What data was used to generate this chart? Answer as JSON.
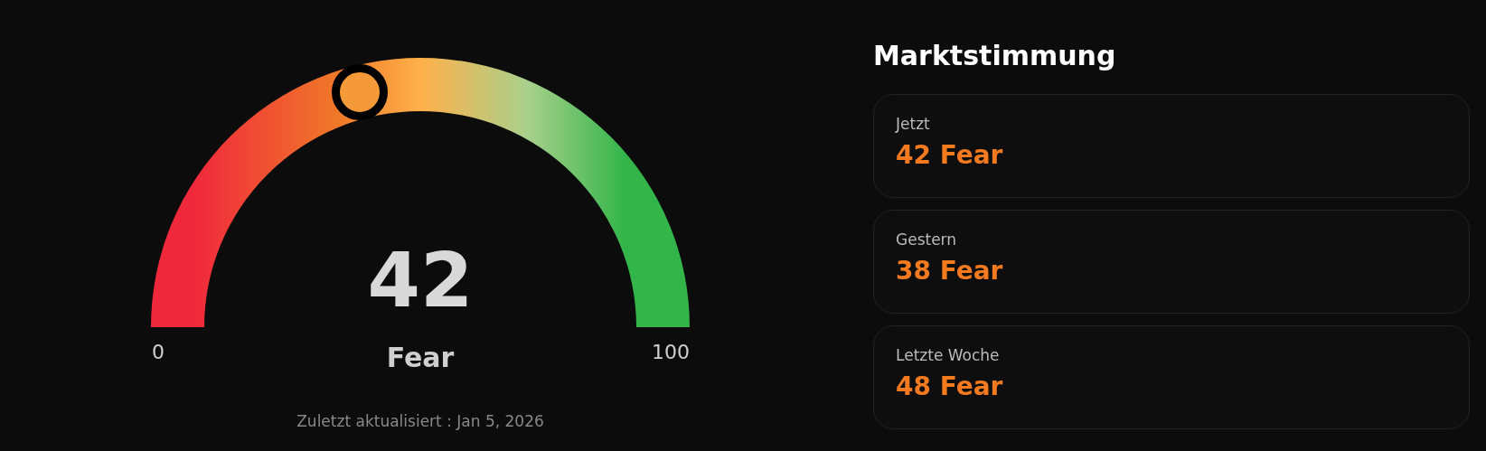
{
  "chart_data": [
    {
      "type": "other",
      "values": [
        42
      ],
      "data_labels": true,
      "annotations": [
        "Fear",
        "Zuletzt aktualisiert :  Jan 5, 2026",
        "0",
        "100"
      ]
    },
    {
      "type": "other",
      "title": "Marktstimmung",
      "annotations": [
        "Jetzt",
        "42 Fear",
        "Gestern",
        "38 Fear",
        "Letzte Woche",
        "48 Fear"
      ]
    }
  ]
}
